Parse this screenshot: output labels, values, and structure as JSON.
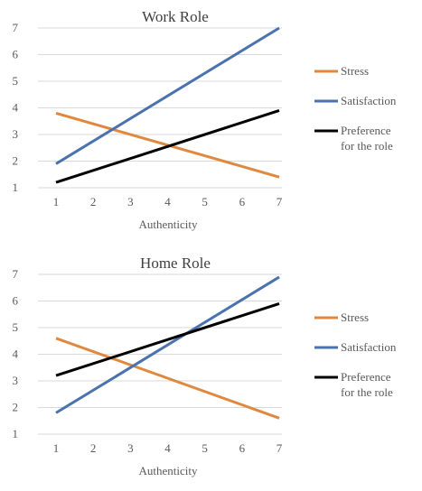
{
  "colors": {
    "Stress": "#e0883f",
    "Satisfaction": "#4a72ae",
    "Preference": "#000000"
  },
  "chart_data": [
    {
      "type": "line",
      "title": "Work Role",
      "xlabel": "Authenticity",
      "ylabel": "",
      "x": [
        1,
        7
      ],
      "xticks": [
        "1",
        "2",
        "3",
        "4",
        "5",
        "6",
        "7"
      ],
      "yticks": [
        "1",
        "2",
        "3",
        "4",
        "5",
        "6",
        "7"
      ],
      "ylim": [
        1,
        7
      ],
      "grid": true,
      "legend": "right",
      "series": [
        {
          "name": "Stress",
          "values": [
            3.8,
            1.4
          ]
        },
        {
          "name": "Satisfaction",
          "values": [
            1.9,
            7.0
          ]
        },
        {
          "name": "Preference for the role",
          "label_lines": [
            "Preference",
            "for the role"
          ],
          "values": [
            1.2,
            3.9
          ]
        }
      ]
    },
    {
      "type": "line",
      "title": "Home Role",
      "xlabel": "Authenticity",
      "ylabel": "",
      "x": [
        1,
        7
      ],
      "xticks": [
        "1",
        "2",
        "3",
        "4",
        "5",
        "6",
        "7"
      ],
      "yticks": [
        "1",
        "2",
        "3",
        "4",
        "5",
        "6",
        "7"
      ],
      "ylim": [
        1,
        7
      ],
      "grid": true,
      "legend": "right",
      "series": [
        {
          "name": "Stress",
          "values": [
            4.6,
            1.6
          ]
        },
        {
          "name": "Satisfaction",
          "values": [
            1.8,
            6.9
          ]
        },
        {
          "name": "Preference for the role",
          "label_lines": [
            "Preference",
            "for the role"
          ],
          "values": [
            3.2,
            5.9
          ]
        }
      ]
    }
  ]
}
